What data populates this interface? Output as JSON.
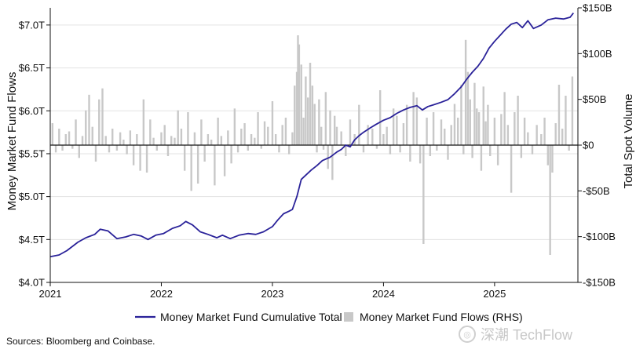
{
  "chart_data": {
    "type": "line+bar",
    "ylabel_left": "Money Market Fund Flows",
    "ylabel_right": "Total Spot Volume",
    "y_left": {
      "min": 4.0,
      "max": 7.2,
      "ticks": [
        4.0,
        4.5,
        5.0,
        5.5,
        6.0,
        6.5,
        7.0
      ],
      "tick_labels": [
        "$4.0T",
        "$4.5T",
        "$5.0T",
        "$5.5T",
        "$6.0T",
        "$6.5T",
        "$7.0T"
      ]
    },
    "y_right": {
      "min": -150,
      "max": 150,
      "ticks": [
        -150,
        -100,
        -50,
        0,
        50,
        100,
        150
      ],
      "tick_labels": [
        "-$150B",
        "-$100B",
        "-$50B",
        "$0",
        "$50B",
        "$100B",
        "$150B"
      ]
    },
    "x": {
      "min": 2021.0,
      "max": 2025.75,
      "ticks": [
        2021,
        2022,
        2023,
        2024,
        2025
      ],
      "tick_labels": [
        "2021",
        "2022",
        "2023",
        "2024",
        "2025"
      ]
    },
    "series": [
      {
        "name": "Money Market Fund Cumulative Total",
        "kind": "line",
        "color": "#2a2299",
        "points": [
          [
            2021.0,
            4.3
          ],
          [
            2021.08,
            4.32
          ],
          [
            2021.15,
            4.37
          ],
          [
            2021.25,
            4.47
          ],
          [
            2021.32,
            4.52
          ],
          [
            2021.4,
            4.56
          ],
          [
            2021.45,
            4.62
          ],
          [
            2021.52,
            4.6
          ],
          [
            2021.6,
            4.51
          ],
          [
            2021.68,
            4.53
          ],
          [
            2021.75,
            4.56
          ],
          [
            2021.82,
            4.54
          ],
          [
            2021.88,
            4.5
          ],
          [
            2021.95,
            4.55
          ],
          [
            2022.02,
            4.57
          ],
          [
            2022.1,
            4.63
          ],
          [
            2022.17,
            4.66
          ],
          [
            2022.22,
            4.71
          ],
          [
            2022.28,
            4.67
          ],
          [
            2022.35,
            4.59
          ],
          [
            2022.42,
            4.56
          ],
          [
            2022.5,
            4.52
          ],
          [
            2022.55,
            4.55
          ],
          [
            2022.62,
            4.51
          ],
          [
            2022.7,
            4.55
          ],
          [
            2022.78,
            4.57
          ],
          [
            2022.85,
            4.56
          ],
          [
            2022.92,
            4.59
          ],
          [
            2023.0,
            4.65
          ],
          [
            2023.05,
            4.73
          ],
          [
            2023.1,
            4.8
          ],
          [
            2023.15,
            4.83
          ],
          [
            2023.18,
            4.85
          ],
          [
            2023.22,
            5.0
          ],
          [
            2023.26,
            5.2
          ],
          [
            2023.3,
            5.25
          ],
          [
            2023.35,
            5.31
          ],
          [
            2023.4,
            5.36
          ],
          [
            2023.45,
            5.42
          ],
          [
            2023.52,
            5.46
          ],
          [
            2023.58,
            5.52
          ],
          [
            2023.62,
            5.55
          ],
          [
            2023.66,
            5.6
          ],
          [
            2023.7,
            5.58
          ],
          [
            2023.74,
            5.66
          ],
          [
            2023.78,
            5.71
          ],
          [
            2023.82,
            5.75
          ],
          [
            2023.88,
            5.8
          ],
          [
            2023.93,
            5.84
          ],
          [
            2024.0,
            5.89
          ],
          [
            2024.06,
            5.92
          ],
          [
            2024.12,
            5.97
          ],
          [
            2024.18,
            6.01
          ],
          [
            2024.24,
            6.04
          ],
          [
            2024.3,
            6.06
          ],
          [
            2024.35,
            6.01
          ],
          [
            2024.4,
            6.05
          ],
          [
            2024.45,
            6.07
          ],
          [
            2024.52,
            6.1
          ],
          [
            2024.58,
            6.13
          ],
          [
            2024.64,
            6.2
          ],
          [
            2024.7,
            6.28
          ],
          [
            2024.75,
            6.37
          ],
          [
            2024.8,
            6.45
          ],
          [
            2024.85,
            6.52
          ],
          [
            2024.9,
            6.61
          ],
          [
            2024.95,
            6.73
          ],
          [
            2025.0,
            6.81
          ],
          [
            2025.05,
            6.88
          ],
          [
            2025.1,
            6.95
          ],
          [
            2025.15,
            7.01
          ],
          [
            2025.2,
            7.03
          ],
          [
            2025.25,
            6.97
          ],
          [
            2025.3,
            7.05
          ],
          [
            2025.35,
            6.96
          ],
          [
            2025.42,
            7.0
          ],
          [
            2025.48,
            7.06
          ],
          [
            2025.55,
            7.08
          ],
          [
            2025.62,
            7.07
          ],
          [
            2025.68,
            7.09
          ],
          [
            2025.71,
            7.14
          ]
        ]
      },
      {
        "name": "Money Market Fund Flows (RHS)",
        "kind": "bar",
        "color": "#c8c8c8",
        "points": [
          [
            2021.02,
            24
          ],
          [
            2021.05,
            -8
          ],
          [
            2021.08,
            18
          ],
          [
            2021.11,
            -6
          ],
          [
            2021.14,
            12
          ],
          [
            2021.17,
            15
          ],
          [
            2021.2,
            -4
          ],
          [
            2021.23,
            28
          ],
          [
            2021.26,
            -14
          ],
          [
            2021.29,
            10
          ],
          [
            2021.32,
            38
          ],
          [
            2021.35,
            55
          ],
          [
            2021.38,
            20
          ],
          [
            2021.41,
            -18
          ],
          [
            2021.44,
            50
          ],
          [
            2021.47,
            62
          ],
          [
            2021.5,
            10
          ],
          [
            2021.53,
            -8
          ],
          [
            2021.56,
            18
          ],
          [
            2021.6,
            -6
          ],
          [
            2021.63,
            14
          ],
          [
            2021.66,
            6
          ],
          [
            2021.69,
            -10
          ],
          [
            2021.72,
            16
          ],
          [
            2021.75,
            -22
          ],
          [
            2021.78,
            12
          ],
          [
            2021.81,
            -28
          ],
          [
            2021.84,
            50
          ],
          [
            2021.87,
            -30
          ],
          [
            2021.9,
            28
          ],
          [
            2021.93,
            8
          ],
          [
            2021.96,
            -6
          ],
          [
            2022.0,
            14
          ],
          [
            2022.03,
            22
          ],
          [
            2022.06,
            -12
          ],
          [
            2022.09,
            10
          ],
          [
            2022.12,
            8
          ],
          [
            2022.15,
            38
          ],
          [
            2022.18,
            18
          ],
          [
            2022.21,
            -28
          ],
          [
            2022.24,
            36
          ],
          [
            2022.27,
            -50
          ],
          [
            2022.3,
            14
          ],
          [
            2022.33,
            -42
          ],
          [
            2022.36,
            28
          ],
          [
            2022.39,
            -18
          ],
          [
            2022.42,
            12
          ],
          [
            2022.45,
            6
          ],
          [
            2022.48,
            -44
          ],
          [
            2022.51,
            30
          ],
          [
            2022.54,
            10
          ],
          [
            2022.57,
            -34
          ],
          [
            2022.6,
            16
          ],
          [
            2022.63,
            -20
          ],
          [
            2022.66,
            40
          ],
          [
            2022.69,
            -8
          ],
          [
            2022.72,
            18
          ],
          [
            2022.75,
            24
          ],
          [
            2022.78,
            -6
          ],
          [
            2022.81,
            12
          ],
          [
            2022.84,
            8
          ],
          [
            2022.87,
            36
          ],
          [
            2022.9,
            -4
          ],
          [
            2022.93,
            26
          ],
          [
            2022.96,
            20
          ],
          [
            2023.0,
            48
          ],
          [
            2023.03,
            12
          ],
          [
            2023.06,
            -8
          ],
          [
            2023.09,
            22
          ],
          [
            2023.12,
            30
          ],
          [
            2023.15,
            -10
          ],
          [
            2023.18,
            14
          ],
          [
            2023.2,
            65
          ],
          [
            2023.22,
            80
          ],
          [
            2023.23,
            120
          ],
          [
            2023.24,
            110
          ],
          [
            2023.26,
            88
          ],
          [
            2023.28,
            30
          ],
          [
            2023.3,
            75
          ],
          [
            2023.32,
            52
          ],
          [
            2023.34,
            90
          ],
          [
            2023.36,
            65
          ],
          [
            2023.38,
            45
          ],
          [
            2023.4,
            -8
          ],
          [
            2023.42,
            50
          ],
          [
            2023.44,
            20
          ],
          [
            2023.46,
            -5
          ],
          [
            2023.48,
            58
          ],
          [
            2023.5,
            -26
          ],
          [
            2023.52,
            38
          ],
          [
            2023.54,
            -38
          ],
          [
            2023.56,
            32
          ],
          [
            2023.58,
            20
          ],
          [
            2023.62,
            15
          ],
          [
            2023.66,
            -12
          ],
          [
            2023.7,
            28
          ],
          [
            2023.74,
            12
          ],
          [
            2023.78,
            44
          ],
          [
            2023.82,
            -8
          ],
          [
            2023.86,
            22
          ],
          [
            2023.9,
            18
          ],
          [
            2023.94,
            -4
          ],
          [
            2023.97,
            60
          ],
          [
            2024.0,
            12
          ],
          [
            2024.03,
            20
          ],
          [
            2024.06,
            -10
          ],
          [
            2024.09,
            40
          ],
          [
            2024.12,
            32
          ],
          [
            2024.15,
            -8
          ],
          [
            2024.18,
            24
          ],
          [
            2024.21,
            44
          ],
          [
            2024.24,
            -18
          ],
          [
            2024.27,
            58
          ],
          [
            2024.3,
            52
          ],
          [
            2024.33,
            -20
          ],
          [
            2024.36,
            -108
          ],
          [
            2024.39,
            30
          ],
          [
            2024.42,
            -12
          ],
          [
            2024.45,
            36
          ],
          [
            2024.48,
            -6
          ],
          [
            2024.52,
            28
          ],
          [
            2024.55,
            18
          ],
          [
            2024.58,
            -16
          ],
          [
            2024.61,
            22
          ],
          [
            2024.64,
            45
          ],
          [
            2024.67,
            30
          ],
          [
            2024.7,
            66
          ],
          [
            2024.72,
            -10
          ],
          [
            2024.74,
            115
          ],
          [
            2024.76,
            80
          ],
          [
            2024.78,
            50
          ],
          [
            2024.8,
            -14
          ],
          [
            2024.82,
            68
          ],
          [
            2024.84,
            40
          ],
          [
            2024.86,
            36
          ],
          [
            2024.88,
            -28
          ],
          [
            2024.9,
            64
          ],
          [
            2024.92,
            26
          ],
          [
            2024.94,
            44
          ],
          [
            2024.96,
            -12
          ],
          [
            2025.0,
            30
          ],
          [
            2025.03,
            -22
          ],
          [
            2025.06,
            34
          ],
          [
            2025.09,
            58
          ],
          [
            2025.12,
            22
          ],
          [
            2025.15,
            -52
          ],
          [
            2025.18,
            36
          ],
          [
            2025.21,
            54
          ],
          [
            2025.24,
            -14
          ],
          [
            2025.27,
            30
          ],
          [
            2025.3,
            14
          ],
          [
            2025.34,
            -10
          ],
          [
            2025.38,
            22
          ],
          [
            2025.42,
            12
          ],
          [
            2025.45,
            30
          ],
          [
            2025.48,
            -22
          ],
          [
            2025.5,
            -120
          ],
          [
            2025.52,
            -30
          ],
          [
            2025.55,
            24
          ],
          [
            2025.58,
            66
          ],
          [
            2025.61,
            18
          ],
          [
            2025.64,
            54
          ],
          [
            2025.67,
            -6
          ],
          [
            2025.7,
            75
          ]
        ]
      }
    ],
    "legend_placement": "bottom-center",
    "grid": true,
    "zero_line": true
  },
  "footer": {
    "source": "Sources: Bloomberg and Coinbase."
  },
  "watermark": {
    "text": "深潮 TechFlow"
  }
}
